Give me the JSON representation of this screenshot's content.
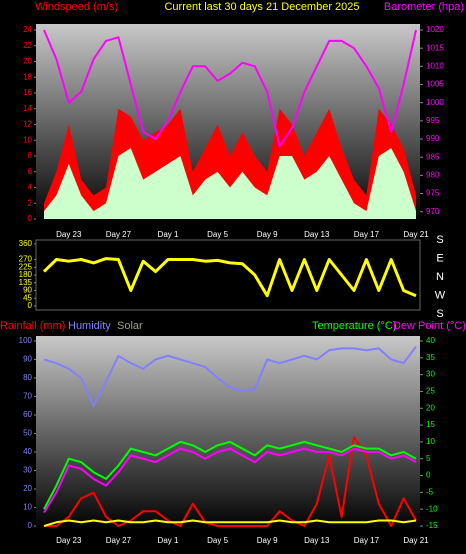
{
  "chart_data": [
    {
      "type": "line",
      "title": "Current last 30 days 21 December 2025",
      "ylabel": "Windspeed (m/s)",
      "y2label": "Barometer (hpa)",
      "categories": [
        null,
        null,
        "Day 23",
        null,
        null,
        null,
        "Day 27",
        null,
        null,
        null,
        "Day 1",
        null,
        null,
        null,
        "Day 5",
        null,
        null,
        null,
        "Day 9",
        null,
        null,
        null,
        "Day 13",
        null,
        null,
        null,
        "Day 17",
        null,
        null,
        null,
        "Day 21"
      ],
      "ylim": [
        0,
        24
      ],
      "yticks": [
        0,
        2,
        4,
        6,
        8,
        10,
        12,
        14,
        16,
        18,
        20,
        22,
        24
      ],
      "y2lim": [
        968,
        1020
      ],
      "y2ticks": [
        970,
        975,
        980,
        985,
        990,
        995,
        1000,
        1005,
        1010,
        1015,
        1020
      ],
      "ytick_color": "#ff0000",
      "y2tick_color": "#ff00ff",
      "series": [
        {
          "color": "#ff0000",
          "kind": "area",
          "values": [
            2,
            6,
            12,
            5,
            3,
            4,
            14,
            13,
            10,
            11,
            12,
            14,
            6,
            9,
            12,
            8,
            11,
            8,
            6,
            14,
            12,
            8,
            11,
            14,
            9,
            5,
            3,
            14,
            12,
            9,
            3
          ]
        },
        {
          "color": "#ccffcc",
          "kind": "area",
          "values": [
            1,
            3,
            7,
            3,
            1,
            2,
            8,
            9,
            5,
            6,
            7,
            8,
            3,
            5,
            6,
            4,
            6,
            4,
            3,
            8,
            8,
            5,
            6,
            8,
            5,
            2,
            1,
            8,
            9,
            6,
            1
          ]
        },
        {
          "color": "#ff00ff",
          "kind": "line",
          "axis": "y2",
          "values": [
            1020,
            1012,
            1000,
            1003,
            1012,
            1017,
            1018,
            1005,
            992,
            990,
            995,
            1003,
            1010,
            1010,
            1006,
            1008,
            1011,
            1010,
            1003,
            988,
            993,
            1003,
            1010,
            1017,
            1017,
            1015,
            1010,
            1004,
            992,
            1005,
            1020
          ]
        }
      ]
    },
    {
      "type": "line",
      "ylim": [
        0,
        360
      ],
      "yticks": [
        0,
        45,
        90,
        135,
        180,
        225,
        270,
        360
      ],
      "ytick_color": "#ffff00",
      "compass_labels": [
        "S",
        "E",
        "N",
        "W",
        "S"
      ],
      "series": [
        {
          "color": "#ffff00",
          "kind": "line",
          "values": [
            200,
            270,
            260,
            270,
            250,
            275,
            270,
            90,
            260,
            200,
            270,
            270,
            270,
            260,
            265,
            250,
            245,
            180,
            60,
            270,
            90,
            270,
            90,
            270,
            180,
            90,
            270,
            90,
            270,
            90,
            60
          ]
        }
      ]
    },
    {
      "type": "line",
      "categories": [
        null,
        null,
        "Day 23",
        null,
        null,
        null,
        "Day 27",
        null,
        null,
        null,
        "Day 1",
        null,
        null,
        null,
        "Day 5",
        null,
        null,
        null,
        "Day 9",
        null,
        null,
        null,
        "Day 13",
        null,
        null,
        null,
        "Day 17",
        null,
        null,
        null,
        "Day 21"
      ],
      "ylim": [
        0,
        100
      ],
      "yticks": [
        0,
        10,
        20,
        30,
        40,
        50,
        60,
        70,
        80,
        90,
        100
      ],
      "y2lim": [
        -15,
        40
      ],
      "y2ticks": [
        -15,
        -10,
        -5,
        0,
        5,
        10,
        15,
        20,
        25,
        30,
        35,
        40
      ],
      "ytick_color": "#8080ff",
      "y2tick_color": "#00ff00",
      "series": [
        {
          "name": "Rainfall (mm)",
          "color": "#ff0000",
          "kind": "line",
          "values": [
            0,
            0,
            5,
            15,
            18,
            5,
            0,
            3,
            8,
            8,
            3,
            0,
            12,
            2,
            0,
            0,
            0,
            0,
            0,
            8,
            3,
            0,
            12,
            38,
            5,
            48,
            38,
            12,
            0,
            15,
            3
          ]
        },
        {
          "name": "Humidity",
          "color": "#8080ff",
          "kind": "line",
          "values": [
            90,
            88,
            85,
            80,
            65,
            78,
            92,
            88,
            85,
            90,
            92,
            90,
            88,
            86,
            80,
            75,
            73,
            74,
            90,
            88,
            90,
            92,
            90,
            95,
            96,
            96,
            95,
            96,
            90,
            88,
            97
          ]
        },
        {
          "name": "Solar",
          "color": "#a0a080",
          "linecolor": "#ffff00",
          "kind": "line",
          "values": [
            0,
            2,
            3,
            2,
            3,
            2,
            3,
            2,
            2,
            3,
            2,
            2,
            3,
            2,
            2,
            2,
            2,
            2,
            2,
            3,
            2,
            2,
            3,
            2,
            2,
            2,
            2,
            3,
            3,
            2,
            3
          ]
        },
        {
          "name": "Temperature (°C)",
          "color": "#00ff00",
          "kind": "line",
          "axis": "y2",
          "values": [
            -10,
            -3,
            5,
            4,
            1,
            -1,
            3,
            8,
            7,
            6,
            8,
            10,
            9,
            7,
            9,
            10,
            8,
            6,
            9,
            8,
            9,
            10,
            9,
            8,
            7,
            9,
            8,
            8,
            6,
            7,
            5
          ]
        },
        {
          "name": "Dew Point (°C)",
          "color": "#ff00ff",
          "kind": "line",
          "axis": "y2",
          "values": [
            -11,
            -5,
            3,
            2,
            -1,
            -3,
            1,
            6,
            5,
            4,
            6,
            8,
            7,
            5,
            7,
            8,
            6,
            4,
            7,
            6,
            7,
            8,
            7,
            7,
            6,
            8,
            7,
            7,
            5,
            6,
            4
          ]
        }
      ]
    }
  ]
}
